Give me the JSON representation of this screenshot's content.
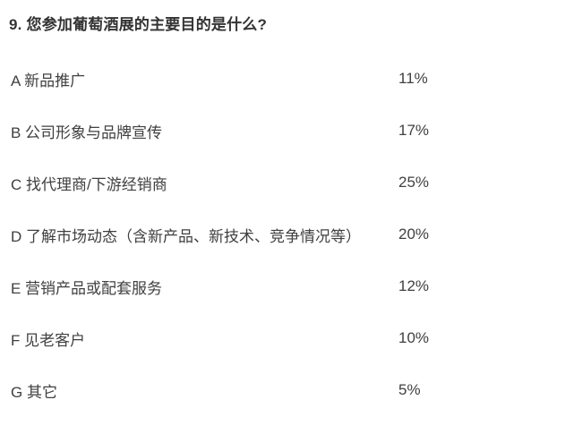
{
  "page": {
    "background_color": "#ffffff",
    "title_color": "#333333",
    "text_color": "#404040"
  },
  "question": {
    "title": "9. 您参加葡萄酒展的主要目的是什么?",
    "options": [
      {
        "key": "A",
        "label": "A 新品推广",
        "percent": "11%"
      },
      {
        "key": "B",
        "label": "B 公司形象与品牌宣传",
        "percent": "17%"
      },
      {
        "key": "C",
        "label": "C 找代理商/下游经销商",
        "percent": "25%"
      },
      {
        "key": "D",
        "label": "D 了解市场动态（含新产品、新技术、竞争情况等）",
        "percent": "20%"
      },
      {
        "key": "E",
        "label": "E 营销产品或配套服务",
        "percent": "12%"
      },
      {
        "key": "F",
        "label": "F 见老客户",
        "percent": "10%"
      },
      {
        "key": "G",
        "label": "G 其它",
        "percent": "5%"
      }
    ]
  },
  "chart_data": {
    "type": "table",
    "title": "9. 您参加葡萄酒展的主要目的是什么?",
    "categories": [
      "A 新品推广",
      "B 公司形象与品牌宣传",
      "C 找代理商/下游经销商",
      "D 了解市场动态（含新产品、新技术、竞争情况等）",
      "E 营销产品或配套服务",
      "F 见老客户",
      "G 其它"
    ],
    "values": [
      11,
      17,
      25,
      20,
      12,
      10,
      5
    ],
    "unit": "%",
    "value_column_alignment": "left",
    "grid": false,
    "legend": false
  }
}
